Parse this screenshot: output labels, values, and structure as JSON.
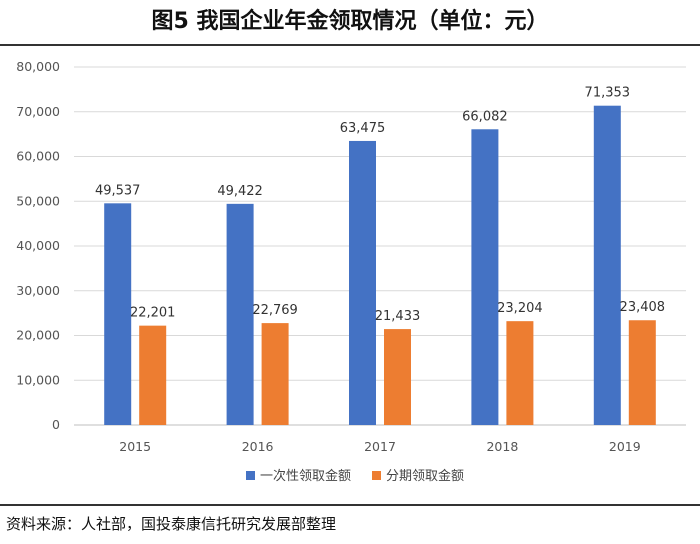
{
  "header": {
    "title": "图5 我国企业年金领取情况（单位：元）"
  },
  "footer": {
    "source": "资料来源：人社部，国投泰康信托研究发展部整理"
  },
  "chart_data": {
    "type": "bar",
    "title": "图5 我国企业年金领取情况（单位：元）",
    "xlabel": "",
    "ylabel": "",
    "categories": [
      "2015",
      "2016",
      "2017",
      "2018",
      "2019"
    ],
    "ylim": [
      0,
      80000
    ],
    "yticks": [
      0,
      10000,
      20000,
      30000,
      40000,
      50000,
      60000,
      70000,
      80000
    ],
    "ytick_labels": [
      "0",
      "10,000",
      "20,000",
      "30,000",
      "40,000",
      "50,000",
      "60,000",
      "70,000",
      "80,000"
    ],
    "grid": true,
    "legend_position": "bottom",
    "series": [
      {
        "name": "一次性领取金额",
        "color": "#4472c4",
        "values": [
          49537,
          49422,
          63475,
          66082,
          71353
        ],
        "labels": [
          "49,537",
          "49,422",
          "63,475",
          "66,082",
          "71,353"
        ]
      },
      {
        "name": "分期领取金额",
        "color": "#ed7d31",
        "values": [
          22201,
          22769,
          21433,
          23204,
          23408
        ],
        "labels": [
          "22,201",
          "22,769",
          "21,433",
          "23,204",
          "23,408"
        ]
      }
    ]
  }
}
